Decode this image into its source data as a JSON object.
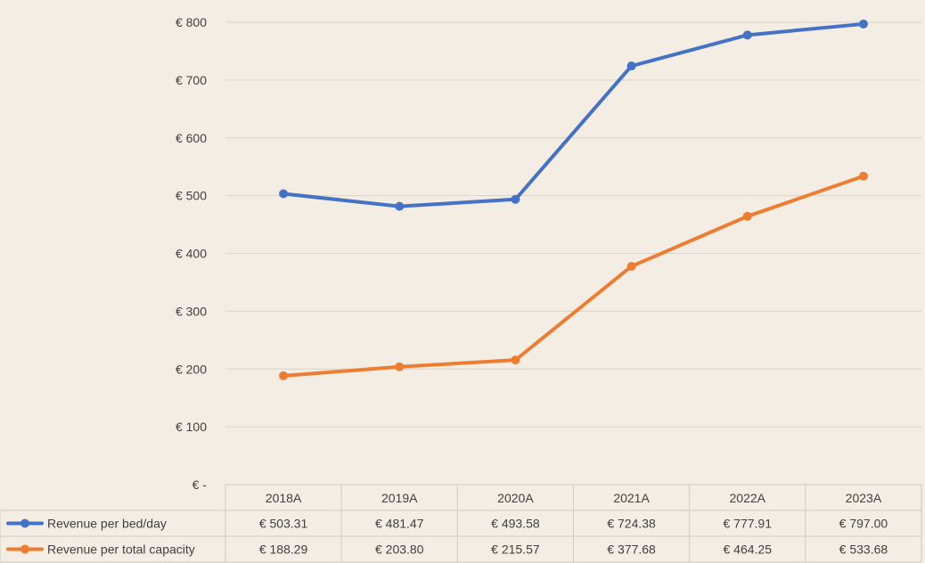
{
  "chart_data": {
    "type": "line",
    "categories": [
      "2018A",
      "2019A",
      "2020A",
      "2021A",
      "2022A",
      "2023A"
    ],
    "ylim": [
      0,
      800
    ],
    "yticks": [
      "€ -",
      "€ 100",
      "€ 200",
      "€ 300",
      "€ 400",
      "€ 500",
      "€ 600",
      "€ 700",
      "€ 800"
    ],
    "ytick_values": [
      0,
      100,
      200,
      300,
      400,
      500,
      600,
      700,
      800
    ],
    "grid": true,
    "legend": "data-table",
    "series": [
      {
        "name": "Revenue per bed/day",
        "color": "#4472c4",
        "values": [
          503.31,
          481.47,
          493.58,
          724.38,
          777.91,
          797.0
        ],
        "labels": [
          "€ 503.31",
          "€ 481.47",
          "€ 493.58",
          "€ 724.38",
          "€ 777.91",
          "€ 797.00"
        ]
      },
      {
        "name": "Revenue per total capacity",
        "color": "#ed7d31",
        "values": [
          188.29,
          203.8,
          215.57,
          377.68,
          464.25,
          533.68
        ],
        "labels": [
          "€ 188.29",
          "€ 203.80",
          "€ 215.57",
          "€ 377.68",
          "€ 464.25",
          "€ 533.68"
        ]
      }
    ]
  }
}
